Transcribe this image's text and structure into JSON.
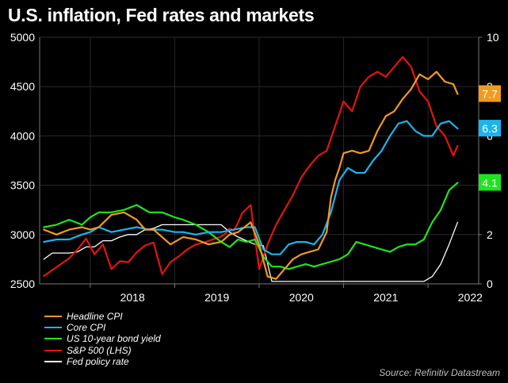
{
  "chart_data": {
    "type": "line",
    "title": "U.S. inflation, Fed rates and markets",
    "source": "Source: Refinitiv Datastream",
    "left_axis": {
      "label": "S&P 500 (LHS)",
      "range": [
        2500,
        5000
      ],
      "ticks": [
        "5000",
        "4500",
        "4000",
        "3500",
        "3000",
        "2500"
      ]
    },
    "right_axis": {
      "range": [
        0,
        10
      ],
      "ticks": [
        "10",
        "8",
        "6",
        "4",
        "2",
        "0"
      ]
    },
    "x_axis": {
      "range": [
        2017.4,
        2022.6
      ],
      "tick_labels": [
        "2018",
        "2019",
        "2020",
        "2021",
        "2022"
      ]
    },
    "series": [
      {
        "name": "Headline CPI",
        "axis": "right",
        "color": "#f39a1e",
        "end_label": "7.7",
        "x": [
          2017.45,
          2017.6,
          2017.75,
          2017.9,
          2018.0,
          2018.1,
          2018.25,
          2018.4,
          2018.55,
          2018.65,
          2018.75,
          2018.85,
          2018.95,
          2019.1,
          2019.25,
          2019.4,
          2019.55,
          2019.65,
          2019.75,
          2019.9,
          2020.0,
          2020.1,
          2020.2,
          2020.3,
          2020.4,
          2020.5,
          2020.6,
          2020.7,
          2020.8,
          2020.85,
          2020.9,
          2020.95,
          2021.0,
          2021.1,
          2021.2,
          2021.3,
          2021.4,
          2021.5,
          2021.6,
          2021.7,
          2021.8,
          2021.9,
          2022.0,
          2022.1,
          2022.2,
          2022.3,
          2022.35
        ],
        "values": [
          2.2,
          2.0,
          2.2,
          2.3,
          2.2,
          2.3,
          2.8,
          2.9,
          2.6,
          2.2,
          2.2,
          1.9,
          1.6,
          1.9,
          1.8,
          1.6,
          1.7,
          2.0,
          2.1,
          2.5,
          1.6,
          0.3,
          0.2,
          0.6,
          1.0,
          1.2,
          1.3,
          1.4,
          2.1,
          3.5,
          4.2,
          4.7,
          5.3,
          5.4,
          5.3,
          5.4,
          6.2,
          6.8,
          7.0,
          7.5,
          7.9,
          8.5,
          8.3,
          8.6,
          8.2,
          8.1,
          7.7
        ]
      },
      {
        "name": "Core CPI",
        "axis": "right",
        "color": "#1cb4ec",
        "end_label": "6.3",
        "x": [
          2017.45,
          2017.6,
          2017.75,
          2017.9,
          2018.0,
          2018.1,
          2018.25,
          2018.4,
          2018.55,
          2018.7,
          2018.85,
          2019.0,
          2019.1,
          2019.25,
          2019.4,
          2019.55,
          2019.7,
          2019.85,
          2019.95,
          2020.05,
          2020.15,
          2020.25,
          2020.35,
          2020.45,
          2020.55,
          2020.65,
          2020.75,
          2020.85,
          2020.95,
          2021.05,
          2021.15,
          2021.25,
          2021.35,
          2021.45,
          2021.55,
          2021.65,
          2021.75,
          2021.85,
          2021.95,
          2022.05,
          2022.15,
          2022.25,
          2022.35
        ],
        "values": [
          1.7,
          1.8,
          1.8,
          2.0,
          2.1,
          2.3,
          2.1,
          2.2,
          2.3,
          2.2,
          2.2,
          2.1,
          2.1,
          2.0,
          2.1,
          2.1,
          2.2,
          2.3,
          2.3,
          1.4,
          1.2,
          1.2,
          1.6,
          1.7,
          1.7,
          1.6,
          2.0,
          2.9,
          4.2,
          4.7,
          4.5,
          4.5,
          5.0,
          5.4,
          6.0,
          6.5,
          6.6,
          6.2,
          6.0,
          6.0,
          6.5,
          6.6,
          6.3
        ]
      },
      {
        "name": "US 10-year bond yield",
        "axis": "right",
        "color": "#1ee51e",
        "end_label": "4.1",
        "x": [
          2017.45,
          2017.6,
          2017.75,
          2017.9,
          2018.0,
          2018.1,
          2018.25,
          2018.4,
          2018.55,
          2018.7,
          2018.85,
          2019.0,
          2019.1,
          2019.25,
          2019.4,
          2019.55,
          2019.65,
          2019.75,
          2019.85,
          2019.95,
          2020.05,
          2020.15,
          2020.25,
          2020.35,
          2020.45,
          2020.55,
          2020.65,
          2020.75,
          2020.85,
          2020.95,
          2021.05,
          2021.15,
          2021.25,
          2021.35,
          2021.45,
          2021.55,
          2021.65,
          2021.75,
          2021.85,
          2021.95,
          2022.05,
          2022.15,
          2022.25,
          2022.35
        ],
        "values": [
          2.3,
          2.4,
          2.6,
          2.4,
          2.7,
          2.9,
          2.9,
          3.0,
          3.2,
          2.9,
          2.9,
          2.7,
          2.6,
          2.4,
          2.1,
          1.7,
          1.5,
          1.8,
          1.7,
          1.8,
          1.1,
          0.7,
          0.7,
          0.6,
          0.7,
          0.8,
          0.7,
          0.8,
          0.9,
          1.0,
          1.2,
          1.7,
          1.6,
          1.5,
          1.4,
          1.3,
          1.5,
          1.6,
          1.6,
          1.8,
          2.5,
          3.0,
          3.8,
          4.1
        ]
      },
      {
        "name": "S&P 500 (LHS)",
        "axis": "left",
        "color": "#e3140f",
        "x": [
          2017.45,
          2017.55,
          2017.65,
          2017.75,
          2017.85,
          2017.95,
          2018.05,
          2018.15,
          2018.25,
          2018.35,
          2018.45,
          2018.55,
          2018.65,
          2018.75,
          2018.85,
          2018.95,
          2019.05,
          2019.15,
          2019.25,
          2019.35,
          2019.45,
          2019.55,
          2019.6,
          2019.65,
          2019.7,
          2019.75,
          2019.8,
          2019.85,
          2019.9,
          2020.0,
          2020.1,
          2020.2,
          2020.3,
          2020.4,
          2020.5,
          2020.6,
          2020.7,
          2020.8,
          2020.9,
          2021.0,
          2021.1,
          2021.2,
          2021.3,
          2021.4,
          2021.5,
          2021.6,
          2021.7,
          2021.8,
          2021.9,
          2022.0,
          2022.1,
          2022.2,
          2022.3,
          2022.35
        ],
        "values": [
          2580,
          2640,
          2700,
          2760,
          2850,
          2960,
          2800,
          2900,
          2650,
          2730,
          2720,
          2820,
          2890,
          2920,
          2600,
          2720,
          2780,
          2850,
          2900,
          2920,
          2950,
          2980,
          3010,
          3060,
          3040,
          3120,
          3220,
          3260,
          3300,
          2650,
          2900,
          3100,
          3250,
          3400,
          3580,
          3700,
          3800,
          3850,
          4100,
          4350,
          4250,
          4500,
          4600,
          4650,
          4600,
          4700,
          4800,
          4700,
          4450,
          4350,
          4100,
          4000,
          3800,
          3900
        ]
      },
      {
        "name": "Fed policy rate",
        "axis": "right",
        "color": "#ffffff",
        "x": [
          2017.45,
          2017.55,
          2017.65,
          2017.75,
          2017.85,
          2017.95,
          2018.05,
          2018.15,
          2018.25,
          2018.35,
          2018.45,
          2018.55,
          2018.65,
          2018.75,
          2018.85,
          2018.95,
          2019.1,
          2019.25,
          2019.4,
          2019.55,
          2019.65,
          2019.75,
          2019.85,
          2019.95,
          2020.05,
          2020.15,
          2020.25,
          2020.35,
          2020.45,
          2020.55,
          2020.65,
          2020.75,
          2020.85,
          2020.95,
          2021.05,
          2021.15,
          2021.25,
          2021.35,
          2021.45,
          2021.55,
          2021.65,
          2021.75,
          2021.85,
          2021.95,
          2022.05,
          2022.15,
          2022.25,
          2022.35
        ],
        "values": [
          1.0,
          1.25,
          1.25,
          1.25,
          1.3,
          1.5,
          1.5,
          1.75,
          1.75,
          1.9,
          2.0,
          2.0,
          2.2,
          2.25,
          2.4,
          2.4,
          2.4,
          2.4,
          2.4,
          2.4,
          2.1,
          1.9,
          1.75,
          1.6,
          1.55,
          0.1,
          0.1,
          0.1,
          0.1,
          0.1,
          0.1,
          0.1,
          0.1,
          0.1,
          0.1,
          0.1,
          0.1,
          0.1,
          0.1,
          0.1,
          0.1,
          0.1,
          0.1,
          0.1,
          0.3,
          0.8,
          1.6,
          2.5
        ]
      }
    ]
  }
}
